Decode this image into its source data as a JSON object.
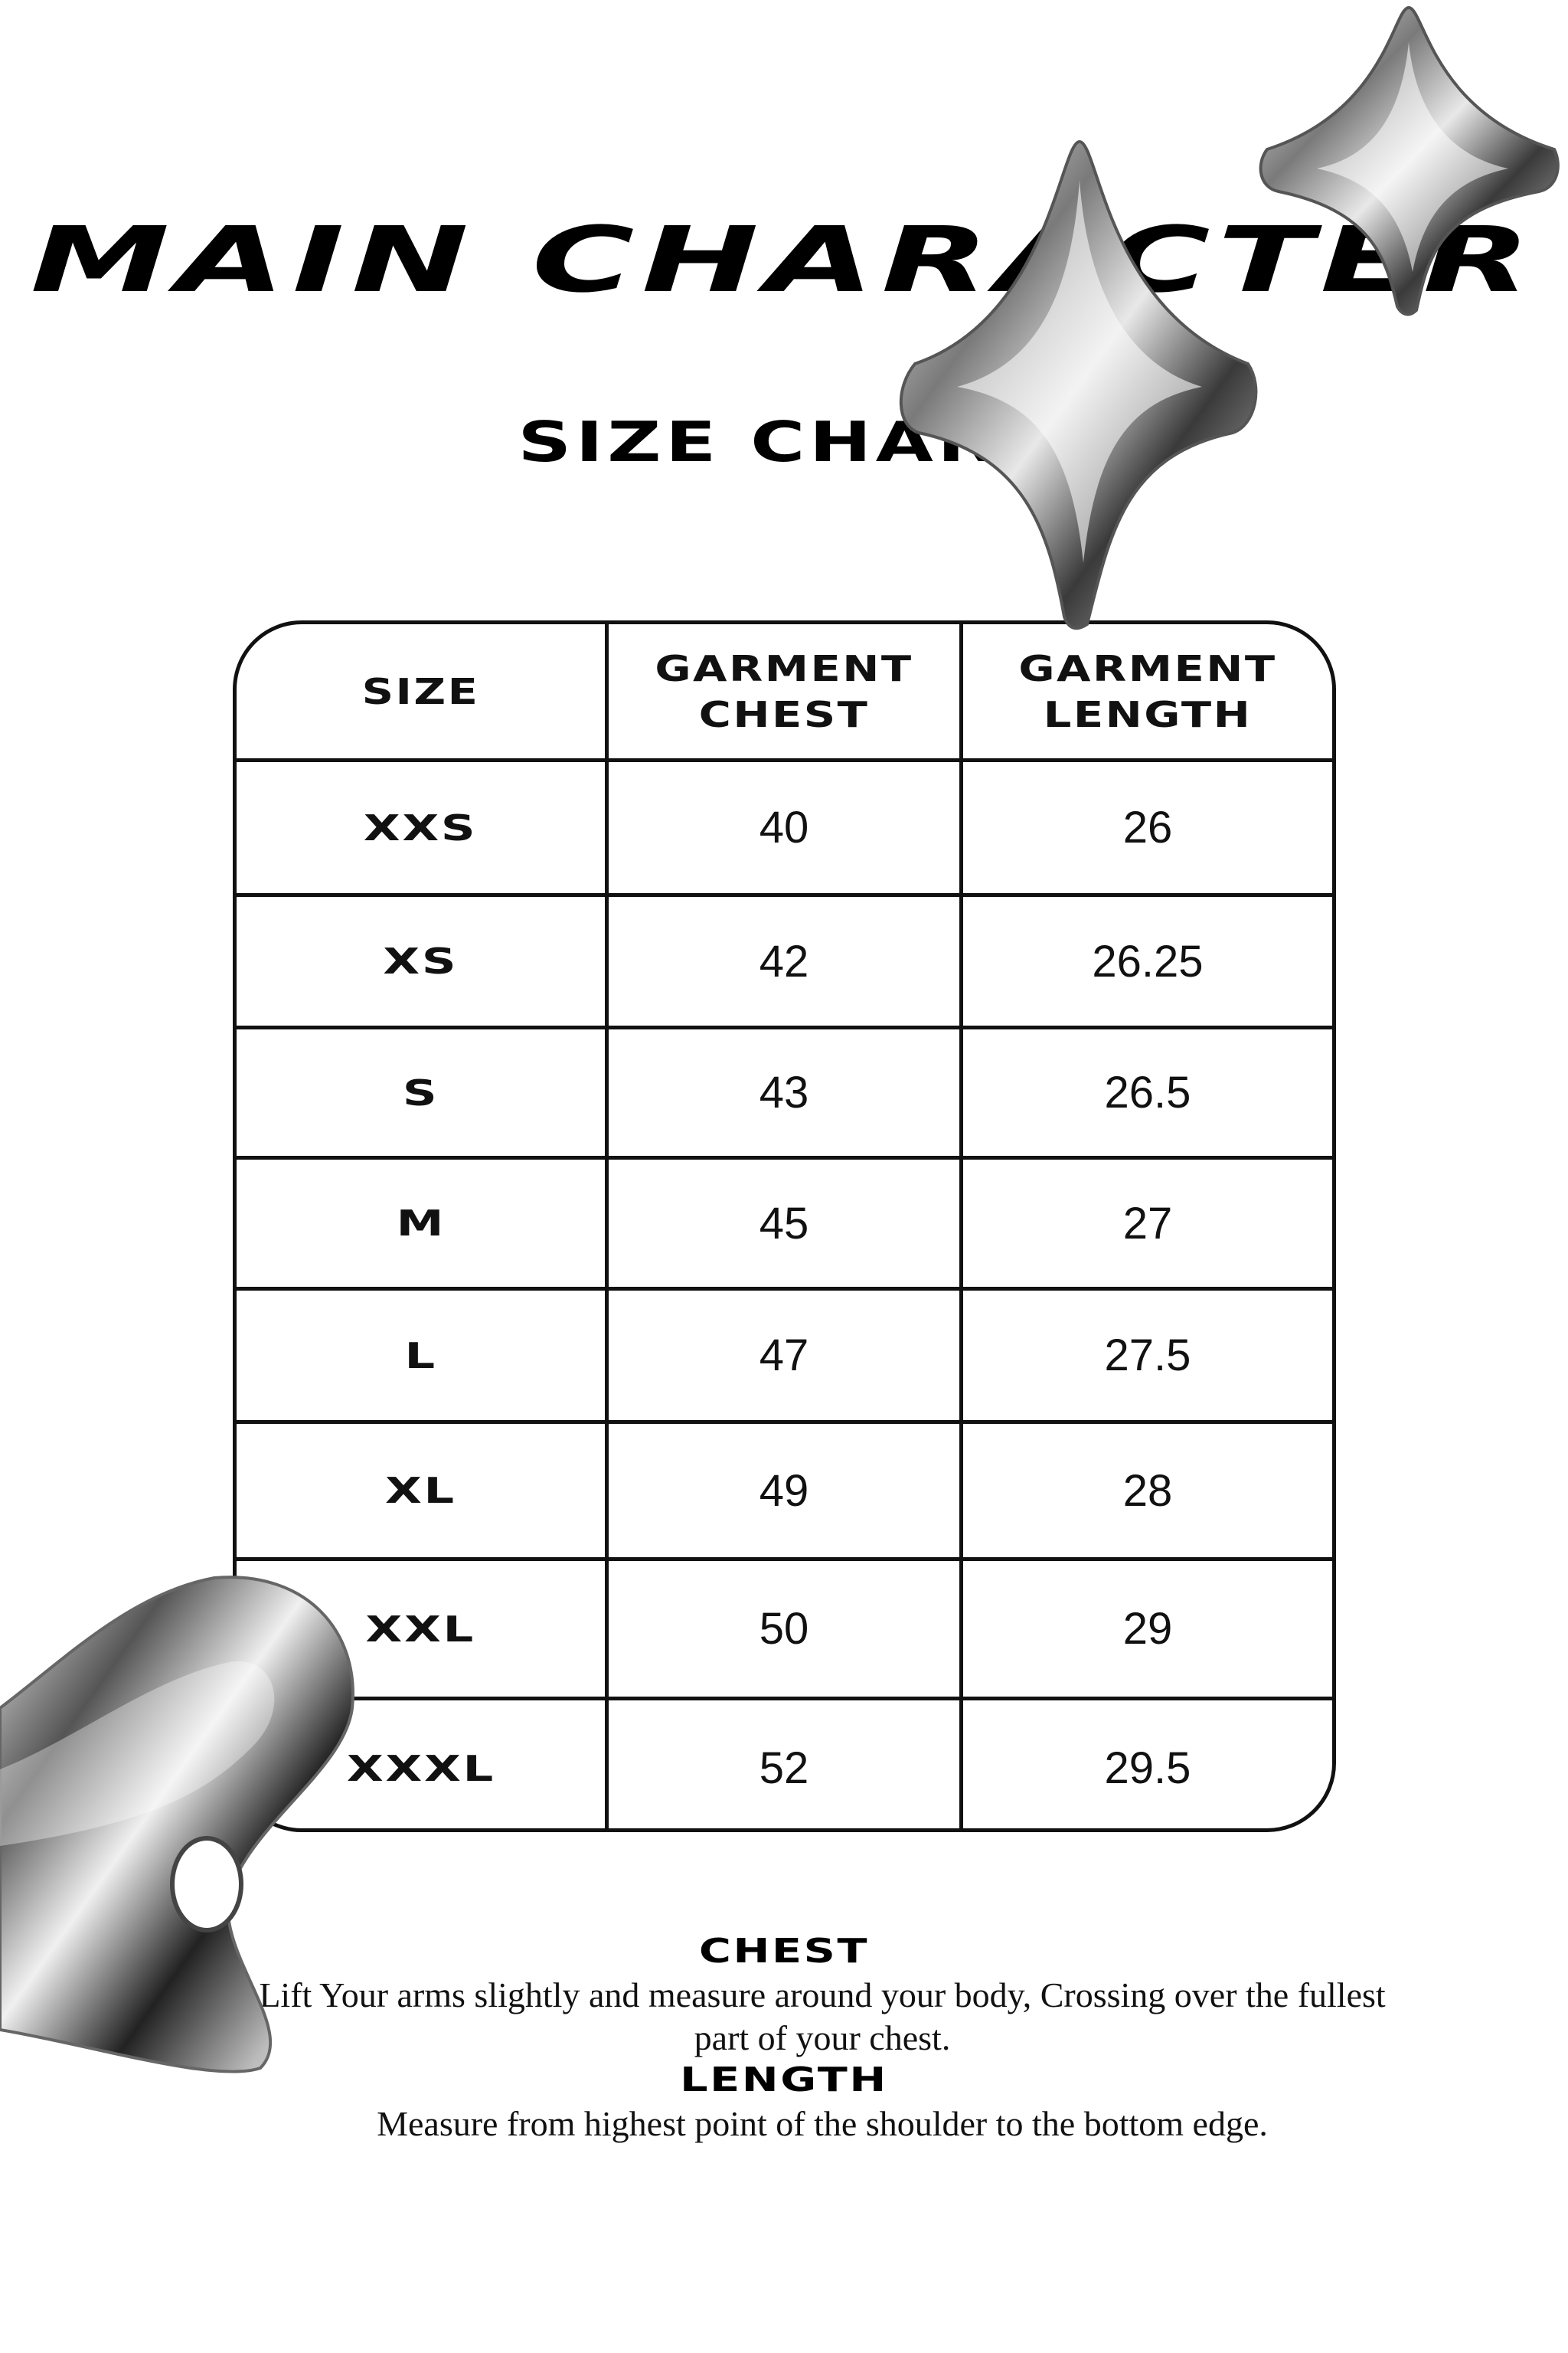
{
  "header": {
    "brand": "MAIN CHARACTER",
    "title": "SIZE CHART"
  },
  "table": {
    "columns": [
      "SIZE",
      "GARMENT CHEST",
      "GARMENT LENGTH"
    ],
    "rows": [
      {
        "size": "XXS",
        "chest": "40",
        "length": "26"
      },
      {
        "size": "XS",
        "chest": "42",
        "length": "26.25"
      },
      {
        "size": "S",
        "chest": "43",
        "length": "26.5"
      },
      {
        "size": "M",
        "chest": "45",
        "length": "27"
      },
      {
        "size": "L",
        "chest": "47",
        "length": "27.5"
      },
      {
        "size": "XL",
        "chest": "49",
        "length": "28"
      },
      {
        "size": "XXL",
        "chest": "50",
        "length": "29"
      },
      {
        "size": "XXXL",
        "chest": "52",
        "length": "29.5"
      }
    ]
  },
  "notes": {
    "chest_heading": "CHEST",
    "chest_text": "Lift Your arms slightly and measure around your body, Crossing over the fullest part of your chest.",
    "length_heading": "LENGTH",
    "length_text": "Measure from highest point of the shoulder to the bottom edge."
  },
  "decorations": [
    "chrome-star-large",
    "chrome-star-small",
    "chrome-heart-blob"
  ],
  "colors": {
    "text": "#000000",
    "background": "#ffffff",
    "chrome": "#c0c0c0"
  }
}
